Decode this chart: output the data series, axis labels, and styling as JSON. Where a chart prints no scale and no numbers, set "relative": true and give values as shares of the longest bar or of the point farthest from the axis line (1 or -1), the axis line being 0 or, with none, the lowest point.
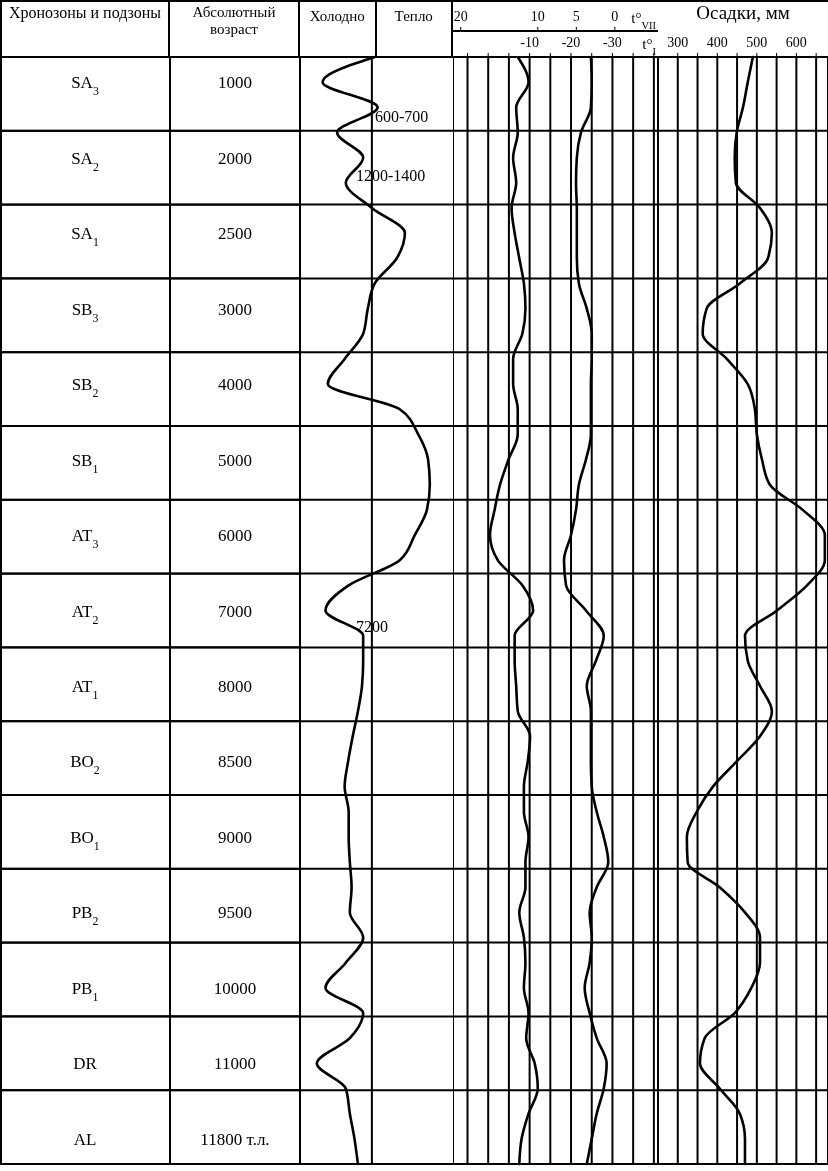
{
  "chart_data": [
    {
      "type": "line",
      "orientation": "horizontal",
      "relative": true,
      "ylabel": "Хронозоны и подзоны",
      "y2label": "Абсолютный возраст",
      "categories": [
        null,
        "SA$_{3}$",
        null,
        null,
        "SA$_{2}$",
        null,
        null,
        "SA$_{1}$",
        null,
        null,
        "SB$_{3}$",
        null,
        null,
        "SB$_{2}$",
        null,
        null,
        "SB$_{1}$",
        null,
        null,
        "AT$_{3}$",
        null,
        null,
        "AT$_{2}$",
        null,
        null,
        "AT$_{1}$",
        null,
        null,
        "BO$_{2}$",
        null,
        null,
        "BO$_{1}$",
        null,
        null,
        "PB$_{2}$",
        null,
        null,
        "PB$_{1}$",
        null,
        null,
        "DR",
        null,
        null,
        "AL",
        null
      ],
      "y2_categories": [
        null,
        "1000",
        null,
        null,
        "2000",
        null,
        null,
        "2500",
        null,
        null,
        "3000",
        null,
        null,
        "4000",
        null,
        null,
        "5000",
        null,
        null,
        "6000",
        null,
        null,
        "7000",
        null,
        null,
        "8000",
        null,
        null,
        "8500",
        null,
        null,
        "9000",
        null,
        null,
        "9500",
        null,
        null,
        "10000",
        null,
        null,
        "11000",
        null,
        null,
        "11800 т.л.",
        null
      ],
      "series": [
        {
          "color": "#000000",
          "values": [
            0.05,
            -0.85,
            0.1,
            -0.6,
            -0.15,
            -0.45,
            0,
            0.57,
            0.43,
            0.05,
            -0.07,
            -0.15,
            -0.47,
            -0.76,
            0.48,
            0.8,
            0.97,
            1,
            0.95,
            0.74,
            0.48,
            -0.4,
            -0.8,
            -0.15,
            -0.15,
            -0.17,
            -0.24,
            -0.33,
            -0.41,
            -0.47,
            -0.4,
            -0.4,
            -0.38,
            -0.35,
            -0.38,
            -0.15,
            -0.45,
            -0.8,
            -0.15,
            -0.38,
            -0.95,
            -0.45,
            -0.38,
            -0.3,
            -0.24
          ]
        }
      ],
      "annotations": [
        "Холодно",
        "Тепло",
        "600-700",
        "1200-1400",
        "7200"
      ],
      "grid": "y",
      "marker": "none",
      "tick_labels": "y"
    },
    {
      "type": "line",
      "orientation": "horizontal",
      "xlabel": "t°$_{I}$",
      "x2label": "t°$_{VII}$",
      "categories": [
        null,
        null,
        null,
        null,
        null,
        null,
        null,
        null,
        null,
        null,
        null,
        null,
        null,
        null,
        null,
        null,
        null,
        null,
        null,
        null,
        null,
        null,
        null,
        null,
        null,
        null,
        null,
        null,
        null,
        null,
        null,
        null,
        null,
        null,
        null,
        null,
        null,
        null,
        null,
        null,
        null,
        null,
        null,
        null,
        null
      ],
      "xlim": [
        8.5,
        -41
      ],
      "xticks": [
        {
          "value": 5,
          "label": null
        },
        {
          "value": 0,
          "label": null
        },
        {
          "value": -5,
          "label": null
        },
        -10,
        {
          "value": -15,
          "label": null
        },
        -20,
        {
          "value": -25,
          "label": null
        },
        -30,
        {
          "value": -35,
          "label": null
        },
        {
          "value": -40,
          "label": null
        }
      ],
      "x2lim": [
        21,
        -5.6
      ],
      "x2ticks": [
        20,
        10,
        5,
        0
      ],
      "series": [
        {
          "color": "#000000",
          "axis": "x2",
          "values": [
            12.6,
            11.2,
            12.8,
            12.6,
            13.2,
            12.8,
            13.4,
            13,
            12.4,
            11.8,
            11.6,
            12,
            13.2,
            13.2,
            12.6,
            12.6,
            13.8,
            14.9,
            15.6,
            16.2,
            15.2,
            12,
            10.6,
            13,
            13,
            12.8,
            12.6,
            11,
            11.3,
            11.8,
            11.8,
            11.2,
            11.6,
            11.6,
            12.4,
            11.8,
            11.6,
            11.8,
            11.2,
            11.5,
            10.4,
            10,
            11.2,
            12.1,
            12.4
          ]
        },
        {
          "color": "#000000",
          "values": [
            -24.8,
            -25,
            -24.8,
            -22.4,
            -21.4,
            -21.2,
            -21.4,
            -21.4,
            -21.4,
            -21.9,
            -23.8,
            -25,
            -25,
            -24.8,
            -24.8,
            -24.8,
            -23.6,
            -21.9,
            -21.2,
            -20,
            -18.3,
            -18.8,
            -23.6,
            -27.9,
            -26,
            -23.8,
            -24.8,
            -24.8,
            -24.8,
            -25,
            -26.2,
            -27.9,
            -29,
            -26.2,
            -24.5,
            -25,
            -24.5,
            -23.3,
            -24.5,
            -26.2,
            -28.6,
            -27.9,
            -26.2,
            -25,
            -23.8
          ]
        }
      ],
      "grid": true,
      "marker": "none",
      "tick_labels": "x"
    },
    {
      "type": "line",
      "orientation": "horizontal",
      "title": "Осадки, мм",
      "categories": [
        null,
        null,
        null,
        null,
        null,
        null,
        null,
        null,
        null,
        null,
        null,
        null,
        null,
        null,
        null,
        null,
        null,
        null,
        null,
        null,
        null,
        null,
        null,
        null,
        null,
        null,
        null,
        null,
        null,
        null,
        null,
        null,
        null,
        null,
        null,
        null,
        null,
        null,
        null,
        null,
        null,
        null,
        null,
        null,
        null
      ],
      "xlim": [
        250,
        680
      ],
      "xticks": [
        300,
        {
          "value": 350,
          "label": null
        },
        400,
        {
          "value": 450,
          "label": null
        },
        500,
        {
          "value": 550,
          "label": null
        },
        600,
        {
          "value": 650,
          "label": null
        }
      ],
      "series": [
        {
          "color": "#000000",
          "values": [
            490,
            477,
            465,
            449,
            444,
            447,
            508,
            538,
            528,
            457,
            373,
            363,
            424,
            477,
            495,
            500,
            513,
            533,
            616,
            672,
            672,
            627,
            551,
            470,
            477,
            508,
            538,
            508,
            449,
            389,
            348,
            323,
            325,
            406,
            470,
            508,
            508,
            486,
            444,
            368,
            356,
            406,
            457,
            470,
            470
          ]
        }
      ],
      "grid": true,
      "marker": "none",
      "tick_labels": "x"
    }
  ]
}
